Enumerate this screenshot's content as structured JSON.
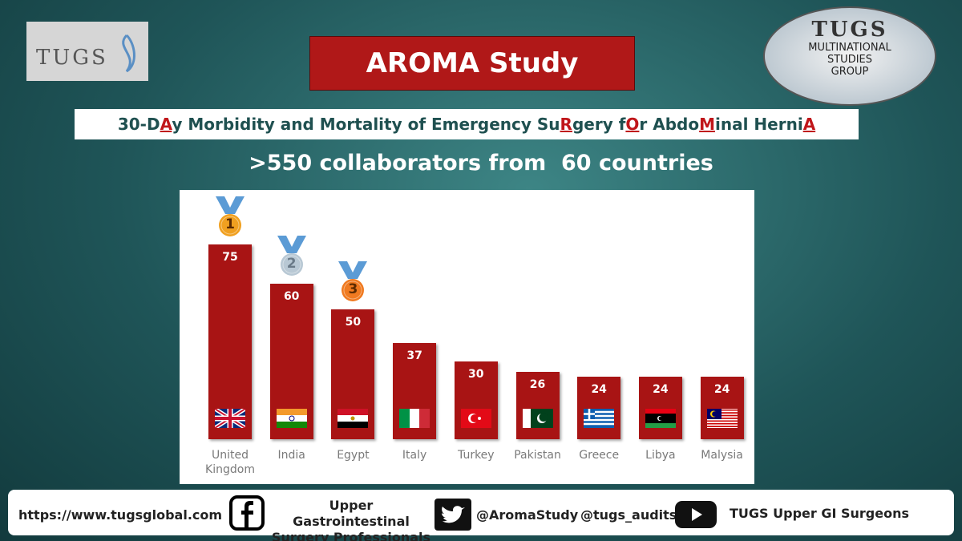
{
  "logo_left": "TUGS",
  "logo_right": {
    "name": "TUGS",
    "lines": [
      "MULTINATIONAL",
      "STUDIES",
      "GROUP"
    ]
  },
  "title": "AROMA Study",
  "subtitle_parts": [
    {
      "text": "30-D"
    },
    {
      "text": "A",
      "highlight": true
    },
    {
      "text": "y Morbidity and Mortality of Emergency Su"
    },
    {
      "text": "R",
      "highlight": true
    },
    {
      "text": "gery f"
    },
    {
      "text": "O",
      "highlight": true
    },
    {
      "text": "r Abdo"
    },
    {
      "text": "M",
      "highlight": true
    },
    {
      "text": "inal Herni"
    },
    {
      "text": "A",
      "highlight": true
    }
  ],
  "tagline": ">550 collaborators from  60 countries",
  "chart_data": {
    "type": "bar",
    "categories": [
      "United Kingdom",
      "India",
      "Egypt",
      "Italy",
      "Turkey",
      "Pakistan",
      "Greece",
      "Libya",
      "Malysia"
    ],
    "values": [
      75,
      60,
      50,
      37,
      30,
      26,
      24,
      24,
      24
    ],
    "color": "#a81414",
    "ranks": [
      1,
      2,
      3
    ]
  },
  "footer": {
    "website": "https://www.tugsglobal.com",
    "facebook": "Upper Gastrointestinal Surgery Professionals",
    "twitter": [
      "@AromaStudy",
      "@tugs_audits"
    ],
    "youtube": "TUGS Upper GI Surgeons"
  }
}
